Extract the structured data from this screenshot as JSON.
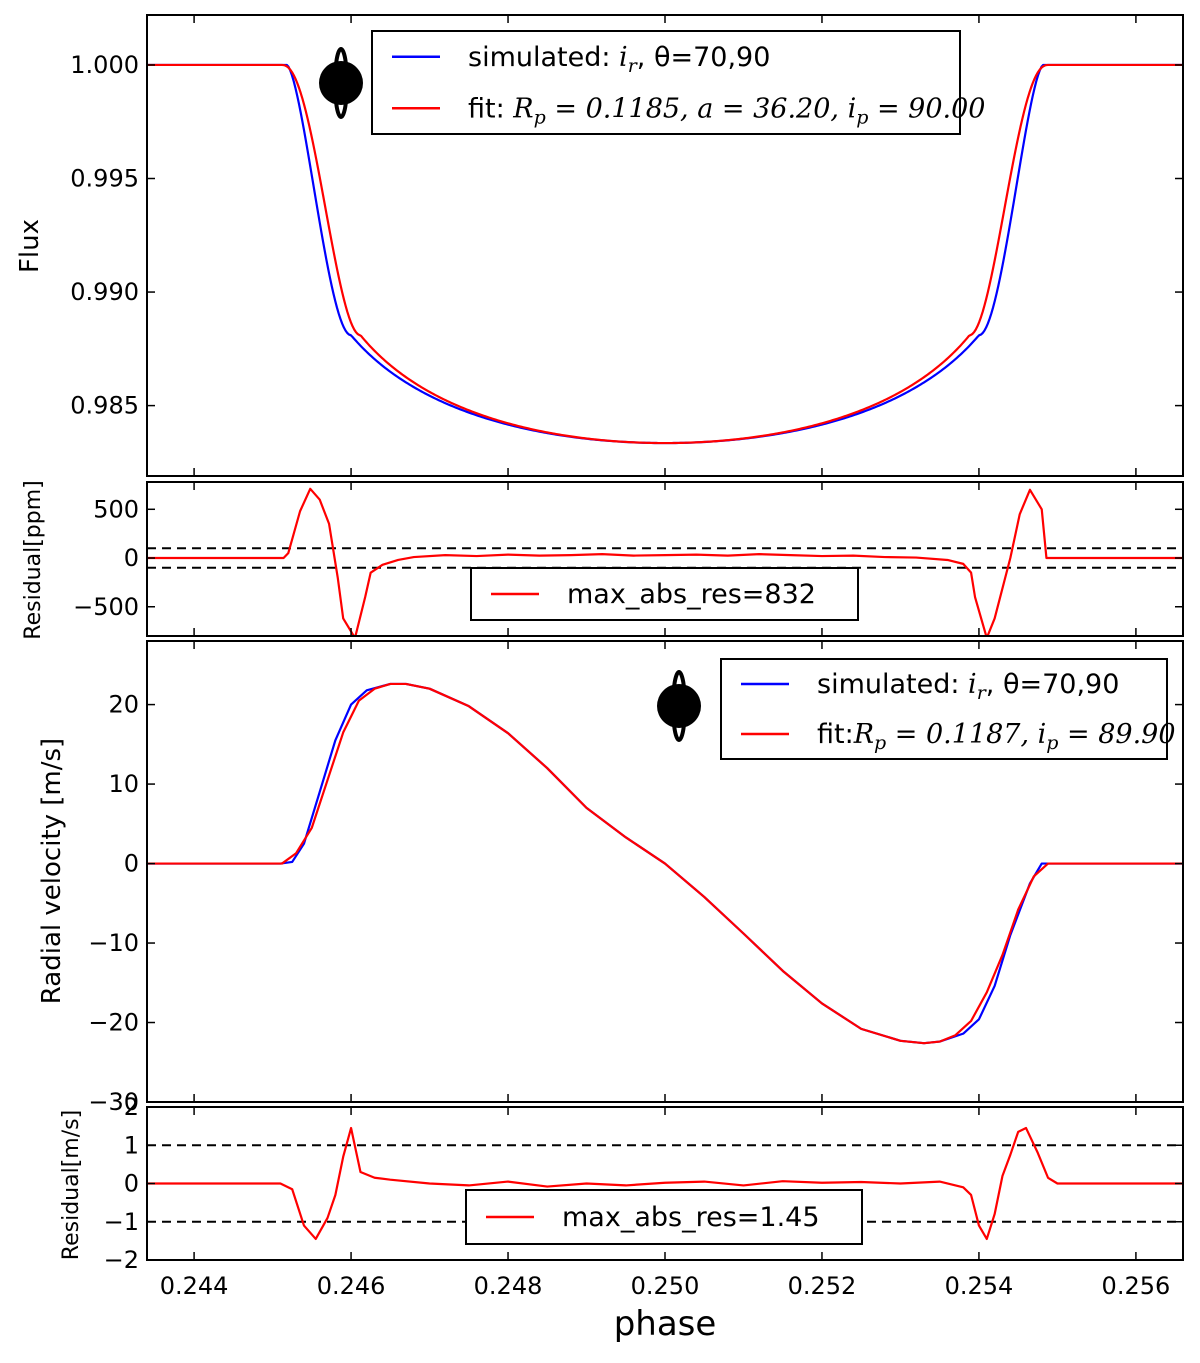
{
  "chart_data": [
    {
      "type": "line",
      "ylabel": "Flux",
      "xlim": [
        0.2434,
        0.2566
      ],
      "ylim": [
        0.9819,
        1.0022
      ],
      "yticks": [
        "1.000",
        "0.995",
        "0.990",
        "0.985"
      ],
      "ytick_values": [
        1.0,
        0.995,
        0.99,
        0.985
      ],
      "legend": {
        "position": "top-center",
        "entries": [
          {
            "text": "simulated: i_r, θ=70,90",
            "text_prefix": "simulated: ",
            "math": "i",
            "sub": "r",
            "after": ", θ=70,90",
            "color": "#0000ff"
          },
          {
            "text": "fit: R_p = 0.1185, a = 36.20, i_p = 90.00",
            "text_prefix": "fit: ",
            "math_parts": [
              "R",
              "p",
              " = 0.1185, a = 36.20, i",
              "p",
              " = 90.00"
            ],
            "color": "#ff0000"
          }
        ]
      },
      "series": [
        {
          "name": "simulated: i_r, θ=70,90",
          "color": "#0000ff",
          "model": "transit",
          "params": {
            "t1": 0.24518,
            "t2": 0.246,
            "t3": 0.254,
            "t4": 0.25482,
            "bottom": 0.98335,
            "edge": 0.9881,
            "shape": 1.7
          }
        },
        {
          "name": "fit: R_p = 0.1185, a = 36.20, i_p = 90.00",
          "color": "#ff0000",
          "model": "transit",
          "params": {
            "t1": 0.24512,
            "t2": 0.24612,
            "t3": 0.25388,
            "t4": 0.25488,
            "bottom": 0.98335,
            "edge": 0.9881,
            "shape": 1.2
          }
        }
      ]
    },
    {
      "type": "line",
      "ylabel": "Residual[ppm]",
      "xlim": [
        0.2434,
        0.2566
      ],
      "ylim": [
        -800,
        780
      ],
      "yticks": [
        "500",
        "0",
        "−500"
      ],
      "ytick_values": [
        500,
        0,
        -500
      ],
      "hlines": [
        100,
        -100
      ],
      "legend": {
        "position": "bottom-center",
        "entries": [
          {
            "text": "max_abs_res=832",
            "color": "#ff0000"
          }
        ]
      },
      "series": [
        {
          "name": "max_abs_res=832",
          "color": "#ff0000",
          "x": [
            0.2434,
            0.24514,
            0.2452,
            0.24535,
            0.24548,
            0.2456,
            0.24572,
            0.24583,
            0.2459,
            0.24605,
            0.24618,
            0.24625,
            0.2464,
            0.2466,
            0.2468,
            0.2472,
            0.2476,
            0.248,
            0.2484,
            0.2488,
            0.2492,
            0.2496,
            0.25,
            0.2504,
            0.2508,
            0.2512,
            0.2516,
            0.252,
            0.2524,
            0.2528,
            0.2532,
            0.2536,
            0.2538,
            0.2539,
            0.25395,
            0.2541,
            0.2542,
            0.2544,
            0.25452,
            0.25465,
            0.2548,
            0.25486,
            0.2566
          ],
          "y": [
            0,
            0,
            50,
            480,
            710,
            600,
            350,
            -200,
            -620,
            -820,
            -400,
            -150,
            -70,
            -20,
            10,
            30,
            20,
            35,
            25,
            30,
            40,
            25,
            30,
            35,
            25,
            40,
            30,
            20,
            25,
            10,
            5,
            -20,
            -60,
            -150,
            -400,
            -820,
            -620,
            0,
            450,
            700,
            500,
            0,
            0
          ]
        }
      ]
    },
    {
      "type": "line",
      "ylabel": "Radial velocity [m/s]",
      "xlim": [
        0.2434,
        0.2566
      ],
      "ylim": [
        -30,
        28
      ],
      "yticks": [
        "20",
        "10",
        "0",
        "−10",
        "−20",
        "−30"
      ],
      "ytick_values": [
        20,
        10,
        0,
        -10,
        -20,
        -30
      ],
      "legend": {
        "position": "top-right",
        "entries": [
          {
            "text": "simulated: i_r, θ=70,90",
            "text_prefix": "simulated: ",
            "math": "i",
            "sub": "r",
            "after": ", θ=70,90",
            "color": "#0000ff"
          },
          {
            "text": "fit: R_p = 0.1187, i_p = 89.90",
            "text_prefix": "fit:",
            "math_parts": [
              "R",
              "p",
              " = 0.1187, i",
              "p",
              " = 89.90"
            ],
            "color": "#ff0000"
          }
        ]
      },
      "series": [
        {
          "name": "simulated: i_r, θ=70,90",
          "color": "#0000ff",
          "model": "rm",
          "x": [
            0.2434,
            0.2451,
            0.24525,
            0.2454,
            0.2456,
            0.2458,
            0.246,
            0.2462,
            0.2465,
            0.2467,
            0.247,
            0.2475,
            0.248,
            0.2485,
            0.249,
            0.2495,
            0.25,
            0.2505,
            0.251,
            0.2515,
            0.252,
            0.2525,
            0.253,
            0.2533,
            0.2535,
            0.2538,
            0.254,
            0.2542,
            0.2544,
            0.25465,
            0.2548,
            0.2566
          ],
          "y": [
            0,
            0,
            0.2,
            2.5,
            9,
            15.5,
            20,
            21.8,
            22.6,
            22.6,
            22.0,
            19.8,
            16.4,
            12.0,
            7.0,
            3.3,
            0,
            -4.2,
            -8.8,
            -13.5,
            -17.6,
            -20.8,
            -22.3,
            -22.6,
            -22.4,
            -21.4,
            -19.6,
            -15.4,
            -9.0,
            -2.5,
            0,
            0
          ]
        },
        {
          "name": "fit: R_p = 0.1187, i_p = 89.90",
          "color": "#ff0000",
          "model": "rm",
          "x": [
            0.2434,
            0.24512,
            0.2453,
            0.2455,
            0.2457,
            0.2459,
            0.2461,
            0.2463,
            0.2465,
            0.2467,
            0.247,
            0.2475,
            0.248,
            0.2485,
            0.249,
            0.2495,
            0.25,
            0.2505,
            0.251,
            0.2515,
            0.252,
            0.2525,
            0.253,
            0.2533,
            0.2535,
            0.2537,
            0.2539,
            0.2541,
            0.2543,
            0.2545,
            0.2547,
            0.25488,
            0.2566
          ],
          "y": [
            0,
            0,
            1.3,
            4.5,
            10.5,
            16.5,
            20.5,
            22.0,
            22.6,
            22.6,
            22.0,
            19.8,
            16.4,
            12.0,
            7.0,
            3.3,
            0,
            -4.2,
            -8.8,
            -13.5,
            -17.6,
            -20.8,
            -22.3,
            -22.6,
            -22.4,
            -21.6,
            -19.8,
            -16.2,
            -11.5,
            -5.8,
            -1.6,
            0,
            0
          ]
        }
      ]
    },
    {
      "type": "line",
      "ylabel": "Residual[m/s]",
      "xlim": [
        0.2434,
        0.2566
      ],
      "ylim": [
        -2,
        2
      ],
      "yticks": [
        "2",
        "1",
        "0",
        "−1",
        "−2"
      ],
      "ytick_values": [
        2,
        1,
        0,
        -1,
        -2
      ],
      "hlines": [
        1,
        -1
      ],
      "xlabel": "phase",
      "xticks": [
        "0.244",
        "0.246",
        "0.248",
        "0.250",
        "0.252",
        "0.254",
        "0.256"
      ],
      "xtick_values": [
        0.244,
        0.246,
        0.248,
        0.25,
        0.252,
        0.254,
        0.256
      ],
      "legend": {
        "position": "bottom-center",
        "entries": [
          {
            "text": "max_abs_res=1.45",
            "color": "#ff0000"
          }
        ]
      },
      "series": [
        {
          "name": "max_abs_res=1.45",
          "color": "#ff0000",
          "x": [
            0.2434,
            0.2451,
            0.24525,
            0.2454,
            0.24555,
            0.2457,
            0.2458,
            0.2459,
            0.246,
            0.24612,
            0.2463,
            0.2465,
            0.247,
            0.2475,
            0.248,
            0.2485,
            0.249,
            0.2495,
            0.25,
            0.2505,
            0.251,
            0.2515,
            0.252,
            0.2525,
            0.253,
            0.2535,
            0.2538,
            0.2539,
            0.254,
            0.2541,
            0.2542,
            0.2543,
            0.2544,
            0.2545,
            0.2546,
            0.25475,
            0.25488,
            0.255,
            0.2566
          ],
          "y": [
            0,
            0,
            -0.15,
            -1.1,
            -1.45,
            -0.9,
            -0.3,
            0.7,
            1.45,
            0.3,
            0.15,
            0.1,
            0.0,
            -0.05,
            0.05,
            -0.08,
            0.0,
            -0.05,
            0.02,
            0.05,
            -0.05,
            0.06,
            0.02,
            0.04,
            0.0,
            0.05,
            -0.1,
            -0.3,
            -1.1,
            -1.45,
            -0.8,
            0.2,
            0.75,
            1.35,
            1.45,
            0.8,
            0.15,
            0.0,
            0
          ]
        }
      ]
    }
  ]
}
